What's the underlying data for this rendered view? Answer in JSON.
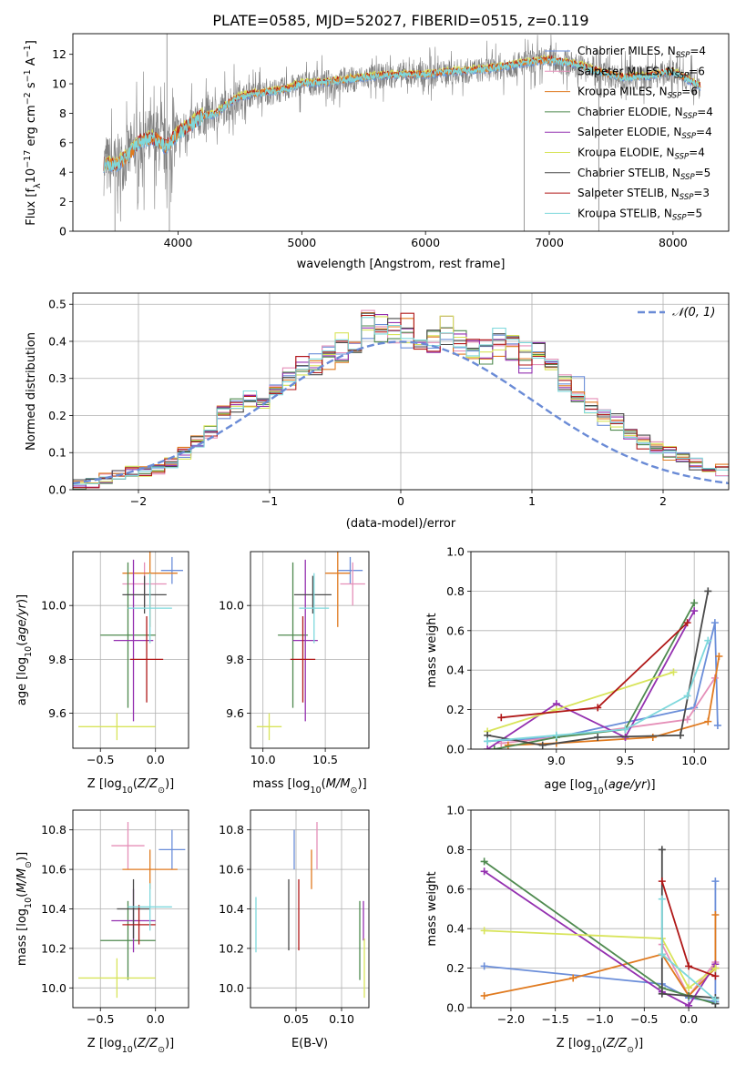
{
  "title": "PLATE=0585, MJD=52027, FIBERID=0515, z=0.119",
  "colors": {
    "Chabrier MILES": "#6b8ed9",
    "Salpeter MILES": "#e58fb8",
    "Kroupa MILES": "#e07a1f",
    "Chabrier ELODIE": "#4f8a4f",
    "Salpeter ELODIE": "#9430b0",
    "Kroupa ELODIE": "#d8e45a",
    "Chabrier STELIB": "#4a4a4a",
    "Salpeter STELIB": "#b01818",
    "Kroupa STELIB": "#7ed8dc",
    "data": "#808080",
    "normal": "#6a8bd6"
  },
  "chart_data": [
    {
      "id": "spectrum",
      "type": "line",
      "xlabel": "wavelength [Angstrom, rest frame]",
      "ylabel": "Flux [f_λ10^-17 erg cm^-2 s^-1 A^-1]",
      "xlim": [
        3150,
        8450
      ],
      "ylim": [
        0,
        13.4
      ],
      "xticks": [
        4000,
        5000,
        6000,
        7000,
        8000
      ],
      "yticks": [
        0,
        2,
        4,
        6,
        8,
        10,
        12
      ],
      "legend": {
        "position": "top-right",
        "entries": [
          {
            "name": "Chabrier MILES",
            "label_main": "Chabrier MILES, N",
            "label_sub": "SSP",
            "label_tail": "=4"
          },
          {
            "name": "Salpeter MILES",
            "label_main": "Salpeter MILES, N",
            "label_sub": "SSP",
            "label_tail": "=6"
          },
          {
            "name": "Kroupa MILES",
            "label_main": "Kroupa MILES, N",
            "label_sub": "SSP",
            "label_tail": "=6"
          },
          {
            "name": "Chabrier ELODIE",
            "label_main": "Chabrier ELODIE, N",
            "label_sub": "SSP",
            "label_tail": "=4"
          },
          {
            "name": "Salpeter ELODIE",
            "label_main": "Salpeter ELODIE, N",
            "label_sub": "SSP",
            "label_tail": "=4"
          },
          {
            "name": "Kroupa ELODIE",
            "label_main": "Kroupa ELODIE, N",
            "label_sub": "SSP",
            "label_tail": "=4"
          },
          {
            "name": "Chabrier STELIB",
            "label_main": "Chabrier STELIB, N",
            "label_sub": "SSP",
            "label_tail": "=5"
          },
          {
            "name": "Salpeter STELIB",
            "label_main": "Salpeter STELIB, N",
            "label_sub": "SSP",
            "label_tail": "=3"
          },
          {
            "name": "Kroupa STELIB",
            "label_main": "Kroupa STELIB, N",
            "label_sub": "SSP",
            "label_tail": "=5"
          }
        ]
      },
      "continuum": {
        "wavelength": [
          3400,
          3500,
          3600,
          3700,
          3800,
          3900,
          4000,
          4100,
          4200,
          4300,
          4400,
          4500,
          4600,
          4700,
          4800,
          4900,
          5000,
          5200,
          5400,
          5600,
          5800,
          6000,
          6200,
          6400,
          6600,
          6800,
          7000,
          7200,
          7400,
          7600,
          7800,
          8000,
          8220
        ],
        "flux": [
          4.5,
          4.4,
          5.2,
          6.1,
          6.3,
          5.7,
          6.6,
          7.2,
          7.8,
          7.9,
          8.6,
          9.1,
          9.3,
          9.4,
          9.5,
          9.7,
          10.0,
          10.1,
          10.3,
          10.5,
          10.6,
          10.6,
          10.8,
          10.9,
          11.1,
          11.4,
          11.6,
          11.3,
          10.8,
          10.4,
          10.5,
          10.8,
          9.8
        ]
      },
      "data_noise": 1.2,
      "spikes": [
        {
          "wavelength": 3490,
          "flux": 0
        },
        {
          "wavelength": 3910,
          "flux": 13.4
        },
        {
          "wavelength": 3930,
          "flux": 0
        },
        {
          "wavelength": 6797,
          "flux": 0
        },
        {
          "wavelength": 7400,
          "flux": 0
        }
      ]
    },
    {
      "id": "residuals",
      "type": "bar",
      "xlabel": "(data-model)/error",
      "ylabel": "Normed distribution",
      "xlim": [
        -2.5,
        2.5
      ],
      "ylim": [
        0,
        0.53
      ],
      "xticks": [
        -2,
        -1,
        0,
        1,
        2
      ],
      "xtick_labels": [
        "−2",
        "−1",
        "0",
        "1",
        "2"
      ],
      "yticks": [
        0,
        0.1,
        0.2,
        0.3,
        0.4,
        0.5
      ],
      "ytick_labels": [
        "0.0",
        "0.1",
        "0.2",
        "0.3",
        "0.4",
        "0.5"
      ],
      "legend": {
        "position": "top-right",
        "entries": [
          {
            "name": "normal",
            "label": "𝒩(0, 1)"
          }
        ]
      },
      "bin_width": 0.1,
      "base_density": [
        0.015,
        0.02,
        0.03,
        0.04,
        0.05,
        0.05,
        0.06,
        0.08,
        0.1,
        0.13,
        0.16,
        0.2,
        0.23,
        0.25,
        0.25,
        0.27,
        0.3,
        0.33,
        0.34,
        0.37,
        0.38,
        0.4,
        0.45,
        0.44,
        0.42,
        0.43,
        0.42,
        0.4,
        0.43,
        0.4,
        0.38,
        0.37,
        0.4,
        0.39,
        0.36,
        0.37,
        0.33,
        0.3,
        0.27,
        0.22,
        0.2,
        0.18,
        0.15,
        0.13,
        0.11,
        0.1,
        0.085,
        0.07,
        0.06,
        0.05
      ]
    },
    {
      "id": "age-vs-Z",
      "type": "scatter",
      "xlabel": "Z [log10(Z/Z☉)]",
      "ylabel": "age [log10(age/yr)]",
      "xlim": [
        -0.75,
        0.3
      ],
      "ylim": [
        9.47,
        10.2
      ],
      "xticks": [
        -0.5,
        0.0
      ],
      "xtick_labels": [
        "−0.5",
        "0.0"
      ],
      "yticks": [
        9.6,
        9.8,
        10.0
      ],
      "ytick_labels": [
        "9.6",
        "9.8",
        "10.0"
      ],
      "points": [
        {
          "name": "Chabrier MILES",
          "x": 0.15,
          "xerr": 0.1,
          "y": 10.13,
          "yerr": 0.05
        },
        {
          "name": "Salpeter MILES",
          "x": -0.1,
          "xerr": 0.2,
          "y": 10.08,
          "yerr": 0.08
        },
        {
          "name": "Kroupa MILES",
          "x": -0.05,
          "xerr": 0.25,
          "y": 10.12,
          "yerr": 0.2
        },
        {
          "name": "Chabrier ELODIE",
          "x": -0.25,
          "xerr": 0.25,
          "y": 9.89,
          "yerr": 0.27
        },
        {
          "name": "Salpeter ELODIE",
          "x": -0.2,
          "xerr": 0.18,
          "y": 9.87,
          "yerr": 0.3
        },
        {
          "name": "Kroupa ELODIE",
          "x": -0.35,
          "xerr": 0.35,
          "y": 9.55,
          "yerr": 0.05
        },
        {
          "name": "Chabrier STELIB",
          "x": -0.1,
          "xerr": 0.2,
          "y": 10.04,
          "yerr": 0.07
        },
        {
          "name": "Salpeter STELIB",
          "x": -0.08,
          "xerr": 0.15,
          "y": 9.8,
          "yerr": 0.16
        },
        {
          "name": "Kroupa STELIB",
          "x": -0.05,
          "xerr": 0.2,
          "y": 9.99,
          "yerr": 0.13
        }
      ]
    },
    {
      "id": "age-vs-mass",
      "type": "scatter",
      "xlabel": "mass [log10(M/M☉)]",
      "ylabel": "",
      "xlim": [
        9.9,
        10.85
      ],
      "ylim": [
        9.47,
        10.2
      ],
      "xticks": [
        10.0,
        10.5
      ],
      "xtick_labels": [
        "10.0",
        "10.5"
      ],
      "yticks": [
        9.6,
        9.8,
        10.0
      ],
      "ytick_labels": [
        "9.6",
        "9.8",
        "10.0"
      ],
      "points": [
        {
          "name": "Chabrier MILES",
          "x": 10.7,
          "xerr": 0.1,
          "y": 10.13,
          "yerr": 0.05
        },
        {
          "name": "Salpeter MILES",
          "x": 10.72,
          "xerr": 0.1,
          "y": 10.08,
          "yerr": 0.08
        },
        {
          "name": "Kroupa MILES",
          "x": 10.6,
          "xerr": 0.1,
          "y": 10.12,
          "yerr": 0.2
        },
        {
          "name": "Chabrier ELODIE",
          "x": 10.24,
          "xerr": 0.12,
          "y": 9.89,
          "yerr": 0.27
        },
        {
          "name": "Salpeter ELODIE",
          "x": 10.34,
          "xerr": 0.1,
          "y": 9.87,
          "yerr": 0.3
        },
        {
          "name": "Kroupa ELODIE",
          "x": 10.05,
          "xerr": 0.1,
          "y": 9.55,
          "yerr": 0.05
        },
        {
          "name": "Chabrier STELIB",
          "x": 10.4,
          "xerr": 0.15,
          "y": 10.04,
          "yerr": 0.07
        },
        {
          "name": "Salpeter STELIB",
          "x": 10.32,
          "xerr": 0.1,
          "y": 9.8,
          "yerr": 0.16
        },
        {
          "name": "Kroupa STELIB",
          "x": 10.41,
          "xerr": 0.12,
          "y": 9.99,
          "yerr": 0.13
        }
      ]
    },
    {
      "id": "weight-vs-age",
      "type": "line",
      "xlabel": "age [log10(age/yr)]",
      "ylabel": "mass weight",
      "xlim": [
        8.38,
        10.25
      ],
      "ylim": [
        0,
        1.0
      ],
      "xticks": [
        9.0,
        9.5,
        10.0
      ],
      "xtick_labels": [
        "9.0",
        "9.5",
        "10.0"
      ],
      "yticks": [
        0,
        0.2,
        0.4,
        0.6,
        0.8,
        1.0
      ],
      "ytick_labels": [
        "0.0",
        "0.2",
        "0.4",
        "0.6",
        "0.8",
        "1.0"
      ],
      "series": [
        {
          "name": "Chabrier MILES",
          "x": [
            8.5,
            9.0,
            10.0,
            10.15,
            10.17
          ],
          "y": [
            0.04,
            0.06,
            0.21,
            0.64,
            0.12
          ]
        },
        {
          "name": "Salpeter MILES",
          "x": [
            8.6,
            9.0,
            9.95,
            10.15
          ],
          "y": [
            0.03,
            0.06,
            0.15,
            0.36
          ]
        },
        {
          "name": "Kroupa MILES",
          "x": [
            8.65,
            9.0,
            9.7,
            10.1,
            10.18
          ],
          "y": [
            0.02,
            0.03,
            0.06,
            0.14,
            0.47
          ]
        },
        {
          "name": "Chabrier ELODIE",
          "x": [
            8.55,
            9.0,
            9.5,
            10.0
          ],
          "y": [
            0.0,
            0.06,
            0.1,
            0.74
          ]
        },
        {
          "name": "Salpeter ELODIE",
          "x": [
            8.5,
            9.0,
            9.5,
            10.0
          ],
          "y": [
            0.0,
            0.23,
            0.06,
            0.7
          ]
        },
        {
          "name": "Kroupa ELODIE",
          "x": [
            8.5,
            9.0,
            9.85
          ],
          "y": [
            0.09,
            0.2,
            0.39
          ]
        },
        {
          "name": "Chabrier STELIB",
          "x": [
            8.5,
            8.9,
            9.3,
            9.9,
            10.1
          ],
          "y": [
            0.07,
            0.02,
            0.06,
            0.07,
            0.8
          ]
        },
        {
          "name": "Salpeter STELIB",
          "x": [
            8.6,
            9.3,
            9.95
          ],
          "y": [
            0.16,
            0.21,
            0.64
          ]
        },
        {
          "name": "Kroupa STELIB",
          "x": [
            8.5,
            9.0,
            9.5,
            9.95,
            10.1
          ],
          "y": [
            0.04,
            0.07,
            0.1,
            0.27,
            0.55
          ]
        }
      ]
    },
    {
      "id": "mass-vs-Z",
      "type": "scatter",
      "xlabel": "Z [log10(Z/Z☉)]",
      "ylabel": "mass [log10(M/M☉)]",
      "xlim": [
        -0.75,
        0.3
      ],
      "ylim": [
        9.9,
        10.9
      ],
      "xticks": [
        -0.5,
        0.0
      ],
      "xtick_labels": [
        "−0.5",
        "0.0"
      ],
      "yticks": [
        10.0,
        10.2,
        10.4,
        10.6,
        10.8
      ],
      "ytick_labels": [
        "10.0",
        "10.2",
        "10.4",
        "10.6",
        "10.8"
      ],
      "points": [
        {
          "name": "Chabrier MILES",
          "x": 0.15,
          "xerr": 0.12,
          "y": 10.7,
          "yerr": 0.1
        },
        {
          "name": "Salpeter MILES",
          "x": -0.25,
          "xerr": 0.15,
          "y": 10.72,
          "yerr": 0.12
        },
        {
          "name": "Kroupa MILES",
          "x": -0.05,
          "xerr": 0.25,
          "y": 10.6,
          "yerr": 0.1
        },
        {
          "name": "Chabrier ELODIE",
          "x": -0.25,
          "xerr": 0.25,
          "y": 10.24,
          "yerr": 0.2
        },
        {
          "name": "Salpeter ELODIE",
          "x": -0.2,
          "xerr": 0.2,
          "y": 10.34,
          "yerr": 0.16
        },
        {
          "name": "Kroupa ELODIE",
          "x": -0.35,
          "xerr": 0.35,
          "y": 10.05,
          "yerr": 0.1
        },
        {
          "name": "Chabrier STELIB",
          "x": -0.2,
          "xerr": 0.15,
          "y": 10.4,
          "yerr": 0.15
        },
        {
          "name": "Salpeter STELIB",
          "x": -0.15,
          "xerr": 0.15,
          "y": 10.32,
          "yerr": 0.1
        },
        {
          "name": "Kroupa STELIB",
          "x": -0.05,
          "xerr": 0.2,
          "y": 10.41,
          "yerr": 0.12
        }
      ]
    },
    {
      "id": "mass-vs-ebv",
      "type": "scatter",
      "xlabel": "E(B-V)",
      "ylabel": "",
      "xlim": [
        0.0,
        0.13
      ],
      "ylim": [
        9.9,
        10.9
      ],
      "xticks": [
        0.05,
        0.1
      ],
      "xtick_labels": [
        "0.05",
        "0.10"
      ],
      "yticks": [
        10.0,
        10.2,
        10.4,
        10.6,
        10.8
      ],
      "ytick_labels": [
        "10.0",
        "10.2",
        "10.4",
        "10.6",
        "10.8"
      ],
      "points": [
        {
          "name": "Chabrier MILES",
          "x": 0.048,
          "xerr": 0,
          "y": 10.7,
          "yerr": 0.1
        },
        {
          "name": "Salpeter MILES",
          "x": 0.073,
          "xerr": 0,
          "y": 10.72,
          "yerr": 0.12
        },
        {
          "name": "Kroupa MILES",
          "x": 0.067,
          "xerr": 0,
          "y": 10.6,
          "yerr": 0.1
        },
        {
          "name": "Chabrier ELODIE",
          "x": 0.12,
          "xerr": 0,
          "y": 10.24,
          "yerr": 0.2
        },
        {
          "name": "Salpeter ELODIE",
          "x": 0.124,
          "xerr": 0,
          "y": 10.34,
          "yerr": 0.1
        },
        {
          "name": "Kroupa ELODIE",
          "x": 0.125,
          "xerr": 0,
          "y": 10.1,
          "yerr": 0.15
        },
        {
          "name": "Chabrier STELIB",
          "x": 0.042,
          "xerr": 0,
          "y": 10.37,
          "yerr": 0.18
        },
        {
          "name": "Salpeter STELIB",
          "x": 0.053,
          "xerr": 0,
          "y": 10.37,
          "yerr": 0.18
        },
        {
          "name": "Kroupa STELIB",
          "x": 0.006,
          "xerr": 0,
          "y": 10.32,
          "yerr": 0.14
        }
      ]
    },
    {
      "id": "weight-vs-Z",
      "type": "line",
      "xlabel": "Z [log10(Z/Z☉)]",
      "ylabel": "mass weight",
      "xlim": [
        -2.45,
        0.45
      ],
      "ylim": [
        0,
        1.0
      ],
      "xticks": [
        -2.0,
        -1.5,
        -1.0,
        -0.5,
        0.0
      ],
      "xtick_labels": [
        "−2.0",
        "−1.5",
        "−1.0",
        "−0.5",
        "0.0"
      ],
      "yticks": [
        0,
        0.2,
        0.4,
        0.6,
        0.8,
        1.0
      ],
      "ytick_labels": [
        "0.0",
        "0.2",
        "0.4",
        "0.6",
        "0.8",
        "1.0"
      ],
      "series": [
        {
          "name": "Chabrier MILES",
          "x": [
            -2.3,
            -0.3,
            0.0,
            0.3,
            0.3
          ],
          "y": [
            0.21,
            0.12,
            0.05,
            0.03,
            0.64
          ]
        },
        {
          "name": "Salpeter MILES",
          "x": [
            -0.3,
            0.0,
            0.3
          ],
          "y": [
            0.32,
            0.06,
            0.23
          ]
        },
        {
          "name": "Kroupa MILES",
          "x": [
            -2.3,
            -1.3,
            -0.3,
            0.0,
            0.3,
            0.3
          ],
          "y": [
            0.06,
            0.15,
            0.27,
            0.06,
            0.2,
            0.47
          ]
        },
        {
          "name": "Chabrier ELODIE",
          "x": [
            -2.3,
            -0.3,
            0.0,
            0.3
          ],
          "y": [
            0.74,
            0.1,
            0.06,
            0.02
          ]
        },
        {
          "name": "Salpeter ELODIE",
          "x": [
            -2.3,
            -0.3,
            0.0,
            0.3
          ],
          "y": [
            0.69,
            0.08,
            0.01,
            0.22
          ]
        },
        {
          "name": "Kroupa ELODIE",
          "x": [
            -2.3,
            -0.3,
            0.0,
            0.3
          ],
          "y": [
            0.39,
            0.35,
            0.1,
            0.2
          ]
        },
        {
          "name": "Chabrier STELIB",
          "x": [
            -0.3,
            -0.3,
            0.3,
            0.3
          ],
          "y": [
            0.8,
            0.07,
            0.05,
            0.02
          ]
        },
        {
          "name": "Salpeter STELIB",
          "x": [
            -0.3,
            0.0,
            0.3
          ],
          "y": [
            0.64,
            0.21,
            0.16
          ]
        },
        {
          "name": "Kroupa STELIB",
          "x": [
            -0.3,
            -0.3,
            0.3
          ],
          "y": [
            0.55,
            0.27,
            0.04
          ]
        }
      ]
    }
  ]
}
